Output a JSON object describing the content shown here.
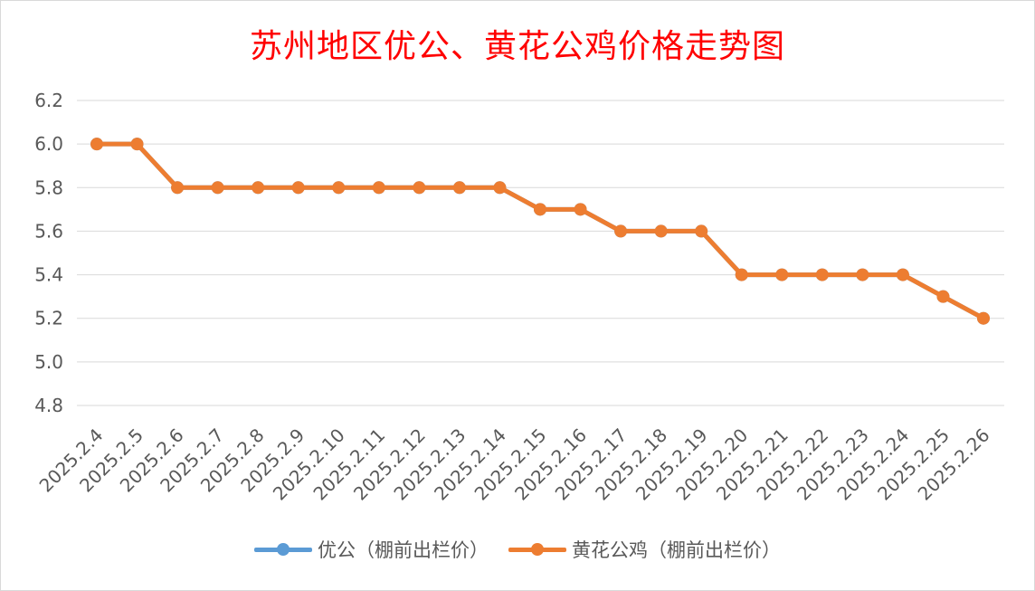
{
  "chart_data": {
    "type": "line",
    "title": "苏州地区优公、黄花公鸡价格走势图",
    "categories": [
      "2025.2.4",
      "2025.2.5",
      "2025.2.6",
      "2025.2.7",
      "2025.2.8",
      "2025.2.9",
      "2025.2.10",
      "2025.2.11",
      "2025.2.12",
      "2025.2.13",
      "2025.2.14",
      "2025.2.15",
      "2025.2.16",
      "2025.2.17",
      "2025.2.18",
      "2025.2.19",
      "2025.2.20",
      "2025.2.21",
      "2025.2.22",
      "2025.2.23",
      "2025.2.24",
      "2025.2.25",
      "2025.2.26"
    ],
    "series": [
      {
        "name": "优公（棚前出栏价）",
        "color": "#5b9bd5",
        "values": [
          6.0,
          6.0,
          5.8,
          5.8,
          5.8,
          5.8,
          5.8,
          5.8,
          5.8,
          5.8,
          5.8,
          5.7,
          5.7,
          5.6,
          5.6,
          5.6,
          5.4,
          5.4,
          5.4,
          5.4,
          5.4,
          5.3,
          5.2
        ]
      },
      {
        "name": "黄花公鸡（棚前出栏价）",
        "color": "#ed7d31",
        "values": [
          6.0,
          6.0,
          5.8,
          5.8,
          5.8,
          5.8,
          5.8,
          5.8,
          5.8,
          5.8,
          5.8,
          5.7,
          5.7,
          5.6,
          5.6,
          5.6,
          5.4,
          5.4,
          5.4,
          5.4,
          5.4,
          5.3,
          5.2
        ]
      }
    ],
    "yticks": [
      "4.8",
      "5.0",
      "5.2",
      "5.4",
      "5.6",
      "5.8",
      "6.0",
      "6.2"
    ],
    "ylim": [
      4.8,
      6.2
    ],
    "grid": true,
    "legend_position": "bottom"
  }
}
